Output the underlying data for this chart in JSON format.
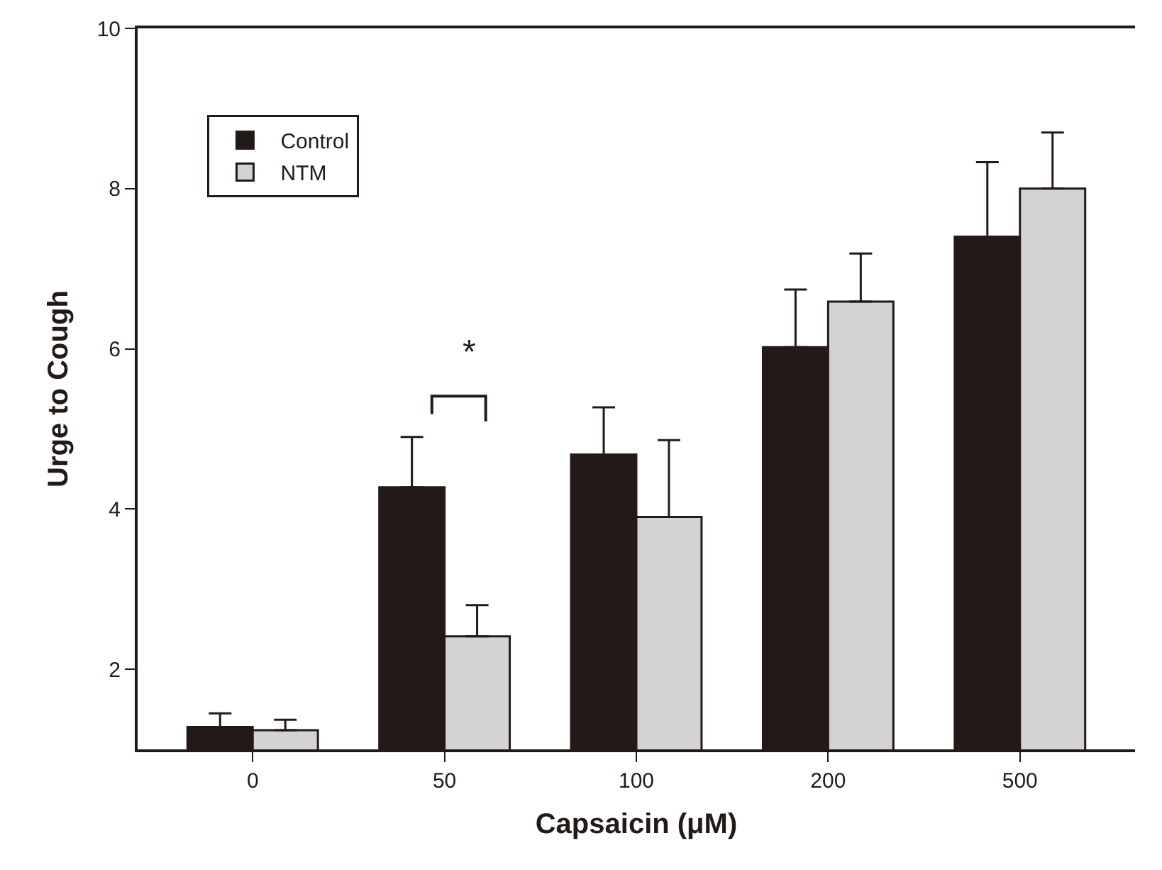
{
  "chart_data": {
    "type": "bar",
    "xlabel": "Capsaicin (μM)",
    "ylabel": "Urge to Cough",
    "categories": [
      "0",
      "50",
      "100",
      "200",
      "500"
    ],
    "series": [
      {
        "name": "Control",
        "color": "#231a18",
        "values": [
          1.28,
          4.27,
          4.68,
          6.02,
          7.4
        ],
        "errors": [
          [
            1.28,
            1.45
          ],
          [
            4.27,
            4.9
          ],
          [
            4.68,
            5.27
          ],
          [
            6.02,
            6.74
          ],
          [
            7.4,
            8.33
          ]
        ]
      },
      {
        "name": "NTM",
        "color": "#d3d3d3",
        "values": [
          1.24,
          2.41,
          3.9,
          6.59,
          8.0
        ],
        "errors": [
          [
            1.24,
            1.37
          ],
          [
            2.41,
            2.8
          ],
          [
            3.9,
            4.86
          ],
          [
            6.59,
            7.19
          ],
          [
            8.0,
            8.7
          ]
        ]
      }
    ],
    "ylim": [
      1,
      10
    ],
    "yticks": [
      2,
      4,
      6,
      8,
      10
    ],
    "legend": "top left",
    "annotations": [
      "*"
    ]
  }
}
